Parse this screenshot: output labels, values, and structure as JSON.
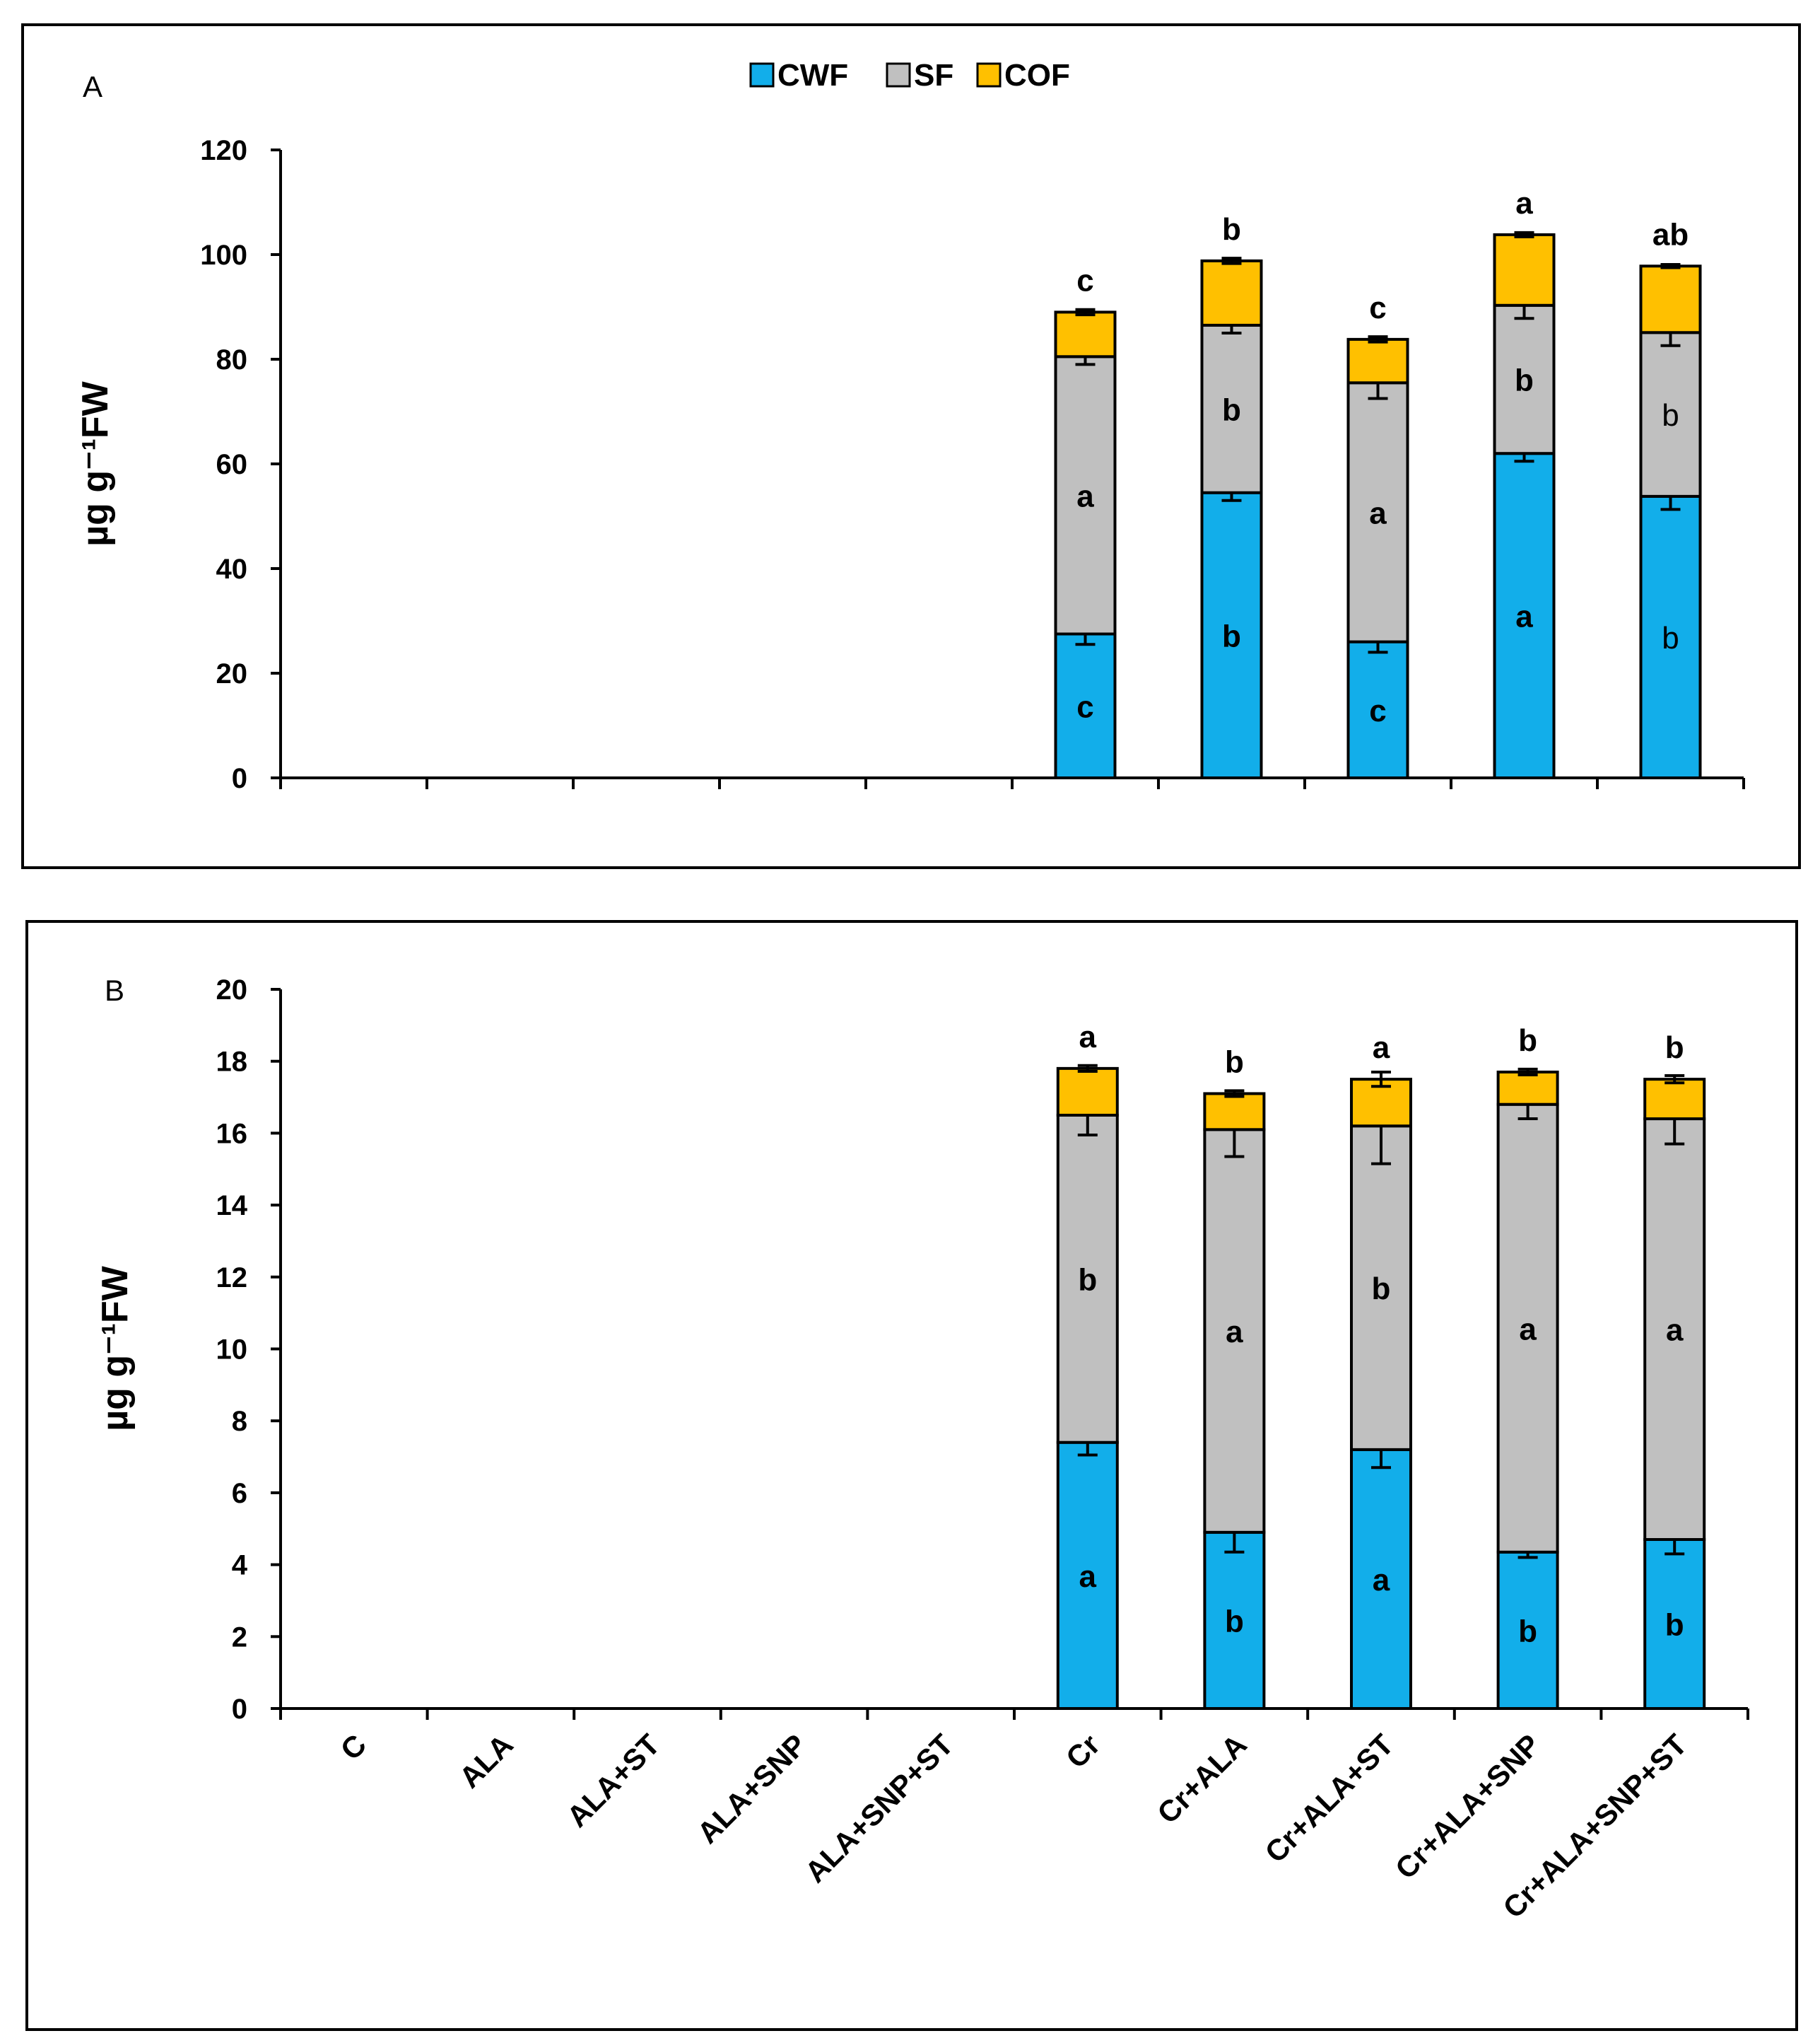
{
  "colors": {
    "CWF": "#12AEEA",
    "SF": "#C0C0C0",
    "COF": "#FFC000"
  },
  "legend": [
    {
      "key": "CWF",
      "label": "CWF"
    },
    {
      "key": "SF",
      "label": "SF"
    },
    {
      "key": "COF",
      "label": "COF"
    }
  ],
  "categories": [
    "C",
    "ALA",
    "ALA+ST",
    "ALA+SNP",
    "ALA+SNP+ST",
    "Cr",
    "Cr+ALA",
    "Cr+ALA+ST",
    "Cr+ALA+SNP",
    "Cr+ALA+SNP+ST"
  ],
  "chart_data": [
    {
      "type": "bar",
      "stacked": true,
      "panel": "A",
      "ylabel": "µg g⁻¹FW",
      "ylim": [
        0,
        120
      ],
      "yticks": [
        0,
        20,
        40,
        60,
        80,
        100,
        120
      ],
      "categories": [
        "C",
        "ALA",
        "ALA+ST",
        "ALA+SNP",
        "ALA+SNP+ST",
        "Cr",
        "Cr+ALA",
        "Cr+ALA+ST",
        "Cr+ALA+SNP",
        "Cr+ALA+SNP+ST"
      ],
      "series": [
        {
          "name": "CWF",
          "values": [
            0,
            0,
            0,
            0,
            0,
            27.5,
            54.5,
            26.0,
            62.0,
            53.8
          ],
          "errors": [
            0,
            0,
            0,
            0,
            0,
            2.0,
            1.5,
            2.0,
            1.5,
            2.5
          ],
          "letters": [
            "",
            "",
            "",
            "",
            "",
            "c",
            "b",
            "c",
            "a",
            "b"
          ],
          "letter_bold": [
            true,
            true,
            true,
            true,
            true,
            true,
            true,
            true,
            true,
            false
          ]
        },
        {
          "name": "SF",
          "values": [
            0,
            0,
            0,
            0,
            0,
            53.0,
            32.0,
            49.5,
            28.3,
            31.3
          ],
          "errors": [
            0,
            0,
            0,
            0,
            0,
            1.5,
            1.5,
            3.0,
            2.5,
            2.5
          ],
          "letters": [
            "",
            "",
            "",
            "",
            "",
            "a",
            "b",
            "a",
            "b",
            "b"
          ],
          "letter_bold": [
            true,
            true,
            true,
            true,
            true,
            true,
            true,
            true,
            true,
            false
          ]
        },
        {
          "name": "COF",
          "values": [
            0,
            0,
            0,
            0,
            0,
            8.5,
            12.3,
            8.3,
            13.5,
            12.7
          ],
          "errors": [
            0,
            0,
            0,
            0,
            0,
            0.5,
            0.5,
            0.5,
            0.4,
            0.3
          ],
          "letters": [
            "",
            "",
            "",
            "",
            "",
            "c",
            "b",
            "c",
            "a",
            "ab"
          ],
          "letter_bold": [
            true,
            true,
            true,
            true,
            true,
            true,
            true,
            true,
            true,
            true
          ]
        }
      ]
    },
    {
      "type": "bar",
      "stacked": true,
      "panel": "B",
      "ylabel": "µg g⁻¹FW",
      "ylim": [
        0,
        20
      ],
      "yticks": [
        0,
        2,
        4,
        6,
        8,
        10,
        12,
        14,
        16,
        18,
        20
      ],
      "categories": [
        "C",
        "ALA",
        "ALA+ST",
        "ALA+SNP",
        "ALA+SNP+ST",
        "Cr",
        "Cr+ALA",
        "Cr+ALA+ST",
        "Cr+ALA+SNP",
        "Cr+ALA+SNP+ST"
      ],
      "series": [
        {
          "name": "CWF",
          "values": [
            0,
            0,
            0,
            0,
            0,
            7.4,
            4.9,
            7.2,
            4.35,
            4.7
          ],
          "errors": [
            0,
            0,
            0,
            0,
            0,
            0.35,
            0.55,
            0.5,
            0.15,
            0.4
          ],
          "letters": [
            "",
            "",
            "",
            "",
            "",
            "a",
            "b",
            "a",
            "b",
            "b"
          ],
          "letter_bold": [
            true,
            true,
            true,
            true,
            true,
            true,
            true,
            true,
            true,
            true
          ]
        },
        {
          "name": "SF",
          "values": [
            0,
            0,
            0,
            0,
            0,
            9.1,
            11.2,
            9.0,
            12.45,
            11.7
          ],
          "errors": [
            0,
            0,
            0,
            0,
            0,
            0.55,
            0.75,
            1.05,
            0.4,
            0.7
          ],
          "letters": [
            "",
            "",
            "",
            "",
            "",
            "b",
            "a",
            "b",
            "a",
            "a"
          ],
          "letter_bold": [
            true,
            true,
            true,
            true,
            true,
            true,
            true,
            true,
            true,
            true
          ]
        },
        {
          "name": "COF",
          "values": [
            0,
            0,
            0,
            0,
            0,
            1.3,
            1.0,
            1.3,
            0.9,
            1.1
          ],
          "errors": [
            0,
            0,
            0,
            0,
            0,
            0.08,
            0.08,
            0.2,
            0.08,
            0.1
          ],
          "letters": [
            "",
            "",
            "",
            "",
            "",
            "a",
            "b",
            "a",
            "b",
            "b"
          ],
          "letter_bold": [
            true,
            true,
            true,
            true,
            true,
            true,
            true,
            true,
            true,
            true
          ]
        }
      ]
    }
  ]
}
